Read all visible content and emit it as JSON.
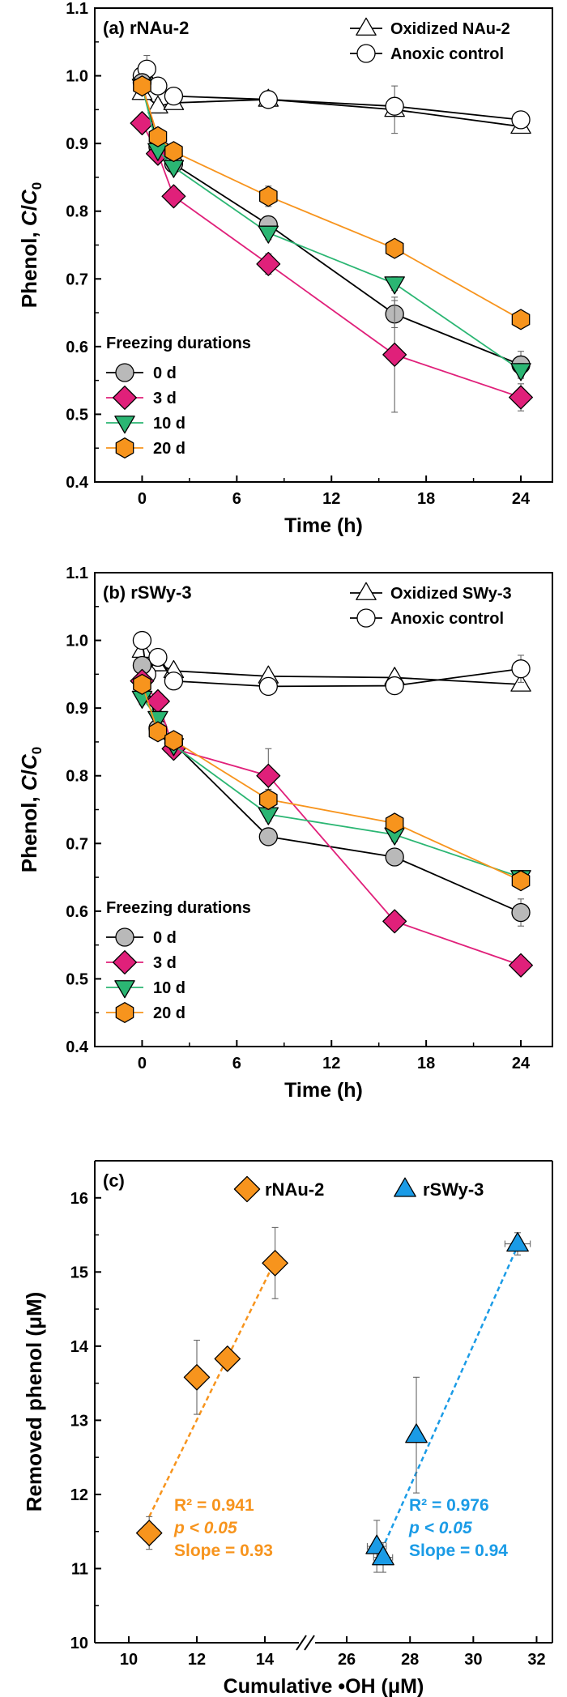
{
  "colors": {
    "c0": "#b9b9b9",
    "c3": "#e0207a",
    "c10": "#2bb673",
    "c20": "#f7941d",
    "rnau": "#f7941d",
    "rswy": "#1a9be6",
    "axis": "#000000"
  },
  "chart_data": [
    {
      "type": "line",
      "panel_label": "(a) rNAu-2",
      "xlabel": "Time (h)",
      "ylabel": "Phenol, C/C0",
      "xlim": [
        -3,
        26
      ],
      "ylim": [
        0.4,
        1.1
      ],
      "xticks": [
        0,
        6,
        12,
        18,
        24
      ],
      "yticks": [
        "0.4",
        "0.5",
        "0.6",
        "0.7",
        "0.8",
        "0.9",
        "1.0",
        "1.1"
      ],
      "top_legend": [
        "Oxidized NAu-2",
        "Anoxic control"
      ],
      "legend_title": "Freezing durations",
      "series": [
        {
          "name": "Oxidized NAu-2",
          "marker": "triangle",
          "color": "#ffffff",
          "x": [
            0,
            1,
            2,
            8,
            16,
            24
          ],
          "y": [
            0.975,
            0.955,
            0.96,
            0.965,
            0.95,
            0.925
          ],
          "err": [
            0.01,
            0.01,
            0.005,
            0.01,
            0.035,
            0.005
          ]
        },
        {
          "name": "Anoxic control",
          "marker": "circle",
          "color": "#ffffff",
          "x": [
            0,
            0.3,
            1,
            2,
            8,
            16,
            24
          ],
          "y": [
            1.0,
            1.01,
            0.985,
            0.97,
            0.965,
            0.955,
            0.935
          ],
          "err": [
            0.01,
            0.02,
            0.01,
            0.005,
            0.01,
            0.01,
            0.005
          ]
        },
        {
          "name": "0 d",
          "marker": "circle",
          "color": "#b9b9b9",
          "x": [
            0,
            1,
            2,
            8,
            16,
            24
          ],
          "y": [
            0.99,
            0.895,
            0.87,
            0.78,
            0.648,
            0.573
          ],
          "err": [
            0.01,
            0.01,
            0.01,
            0.01,
            0.02,
            0.02
          ]
        },
        {
          "name": "3 d",
          "marker": "diamond",
          "color": "#e0207a",
          "x": [
            0,
            1,
            2,
            8,
            16,
            24
          ],
          "y": [
            0.93,
            0.885,
            0.822,
            0.722,
            0.588,
            0.525
          ],
          "err": [
            0.01,
            0.01,
            0.01,
            0.015,
            0.085,
            0.02
          ]
        },
        {
          "name": "10 d",
          "marker": "triangle-down",
          "color": "#2bb673",
          "x": [
            0,
            1,
            2,
            8,
            16,
            24
          ],
          "y": [
            0.985,
            0.89,
            0.865,
            0.768,
            0.693,
            0.565
          ],
          "err": [
            0.01,
            0.01,
            0.01,
            0.01,
            0.01,
            0.01
          ]
        },
        {
          "name": "20 d",
          "marker": "hexagon",
          "color": "#f7941d",
          "x": [
            0,
            1,
            2,
            8,
            16,
            24
          ],
          "y": [
            0.985,
            0.91,
            0.888,
            0.822,
            0.745,
            0.64
          ],
          "err": [
            0.01,
            0.01,
            0.01,
            0.015,
            0.01,
            0.01
          ]
        }
      ]
    },
    {
      "type": "line",
      "panel_label": "(b) rSWy-3",
      "xlabel": "Time (h)",
      "ylabel": "Phenol, C/C0",
      "xlim": [
        -3,
        26
      ],
      "ylim": [
        0.4,
        1.1
      ],
      "xticks": [
        0,
        6,
        12,
        18,
        24
      ],
      "yticks": [
        "0.4",
        "0.5",
        "0.6",
        "0.7",
        "0.8",
        "0.9",
        "1.0",
        "1.1"
      ],
      "top_legend": [
        "Oxidized SWy-3",
        "Anoxic control"
      ],
      "legend_title": "Freezing durations",
      "series": [
        {
          "name": "Oxidized SWy-3",
          "marker": "triangle",
          "color": "#ffffff",
          "x": [
            0,
            1,
            2,
            8,
            16,
            24
          ],
          "y": [
            0.985,
            0.965,
            0.955,
            0.947,
            0.945,
            0.935
          ],
          "err": [
            0.01,
            0.01,
            0.005,
            0.005,
            0.005,
            0.005
          ]
        },
        {
          "name": "Anoxic control",
          "marker": "circle",
          "color": "#ffffff",
          "x": [
            0,
            0.3,
            1,
            2,
            8,
            16,
            24
          ],
          "y": [
            1.0,
            0.95,
            0.975,
            0.94,
            0.932,
            0.933,
            0.958
          ],
          "err": [
            0.01,
            0.02,
            0.01,
            0.005,
            0.005,
            0.005,
            0.02
          ]
        },
        {
          "name": "0 d",
          "marker": "circle",
          "color": "#b9b9b9",
          "x": [
            0,
            1,
            2,
            8,
            16,
            24
          ],
          "y": [
            0.963,
            0.87,
            0.848,
            0.71,
            0.68,
            0.598
          ],
          "err": [
            0.01,
            0.01,
            0.01,
            0.01,
            0.01,
            0.02
          ]
        },
        {
          "name": "3 d",
          "marker": "diamond",
          "color": "#e0207a",
          "x": [
            0,
            1,
            2,
            8,
            16,
            24
          ],
          "y": [
            0.94,
            0.91,
            0.84,
            0.8,
            0.585,
            0.52
          ],
          "err": [
            0.01,
            0.01,
            0.01,
            0.04,
            0.01,
            0.01
          ]
        },
        {
          "name": "10 d",
          "marker": "triangle-down",
          "color": "#2bb673",
          "x": [
            0,
            1,
            2,
            8,
            16,
            24
          ],
          "y": [
            0.915,
            0.885,
            0.845,
            0.743,
            0.713,
            0.65
          ],
          "err": [
            0.01,
            0.01,
            0.01,
            0.01,
            0.01,
            0.01
          ]
        },
        {
          "name": "20 d",
          "marker": "hexagon",
          "color": "#f7941d",
          "x": [
            0,
            1,
            2,
            8,
            16,
            24
          ],
          "y": [
            0.935,
            0.865,
            0.852,
            0.765,
            0.73,
            0.645
          ],
          "err": [
            0.01,
            0.01,
            0.01,
            0.015,
            0.01,
            0.01
          ]
        }
      ]
    },
    {
      "type": "scatter",
      "panel_label": "(c)",
      "xlabel": "Cumulative •OH (μM)",
      "ylabel": "Removed phenol (μM)",
      "ylim": [
        10,
        16.5
      ],
      "yticks": [
        "10",
        "11",
        "12",
        "13",
        "14",
        "15",
        "16"
      ],
      "x_segments": [
        {
          "xlim": [
            9,
            15
          ],
          "ticks": [
            10,
            12,
            14
          ]
        },
        {
          "xlim": [
            25,
            32.5
          ],
          "ticks": [
            26,
            28,
            30,
            32
          ]
        }
      ],
      "axis_break": "//",
      "series": [
        {
          "name": "rNAu-2",
          "marker": "diamond",
          "color": "#f7941d",
          "segment": 0,
          "points": [
            {
              "x": 10.6,
              "y": 11.48,
              "xerr": 0.1,
              "yerr": 0.22
            },
            {
              "x": 12.0,
              "y": 13.58,
              "xerr": 0.15,
              "yerr": 0.5
            },
            {
              "x": 12.9,
              "y": 13.83,
              "xerr": 0.25,
              "yerr": 0.05
            },
            {
              "x": 14.3,
              "y": 15.12,
              "xerr": 0.1,
              "yerr": 0.48
            }
          ],
          "fit": {
            "x": [
              10.6,
              14.3
            ],
            "y": [
              11.7,
              15.15
            ]
          },
          "stats": {
            "r2": "R² = 0.941",
            "p": "p < 0.05",
            "slope": "Slope = 0.93"
          }
        },
        {
          "name": "rSWy-3",
          "marker": "triangle",
          "color": "#1a9be6",
          "segment": 1,
          "points": [
            {
              "x": 26.95,
              "y": 11.3,
              "xerr": 0.3,
              "yerr": 0.35
            },
            {
              "x": 27.15,
              "y": 11.15,
              "xerr": 0.3,
              "yerr": 0.2
            },
            {
              "x": 28.2,
              "y": 12.8,
              "xerr": 0.1,
              "yerr": 0.78
            },
            {
              "x": 31.4,
              "y": 15.38,
              "xerr": 0.4,
              "yerr": 0.15
            }
          ],
          "fit": {
            "x": [
              27.0,
              31.4
            ],
            "y": [
              11.15,
              15.35
            ]
          },
          "stats": {
            "r2": "R² = 0.976",
            "p": "p < 0.05",
            "slope": "Slope = 0.94"
          }
        }
      ]
    }
  ]
}
